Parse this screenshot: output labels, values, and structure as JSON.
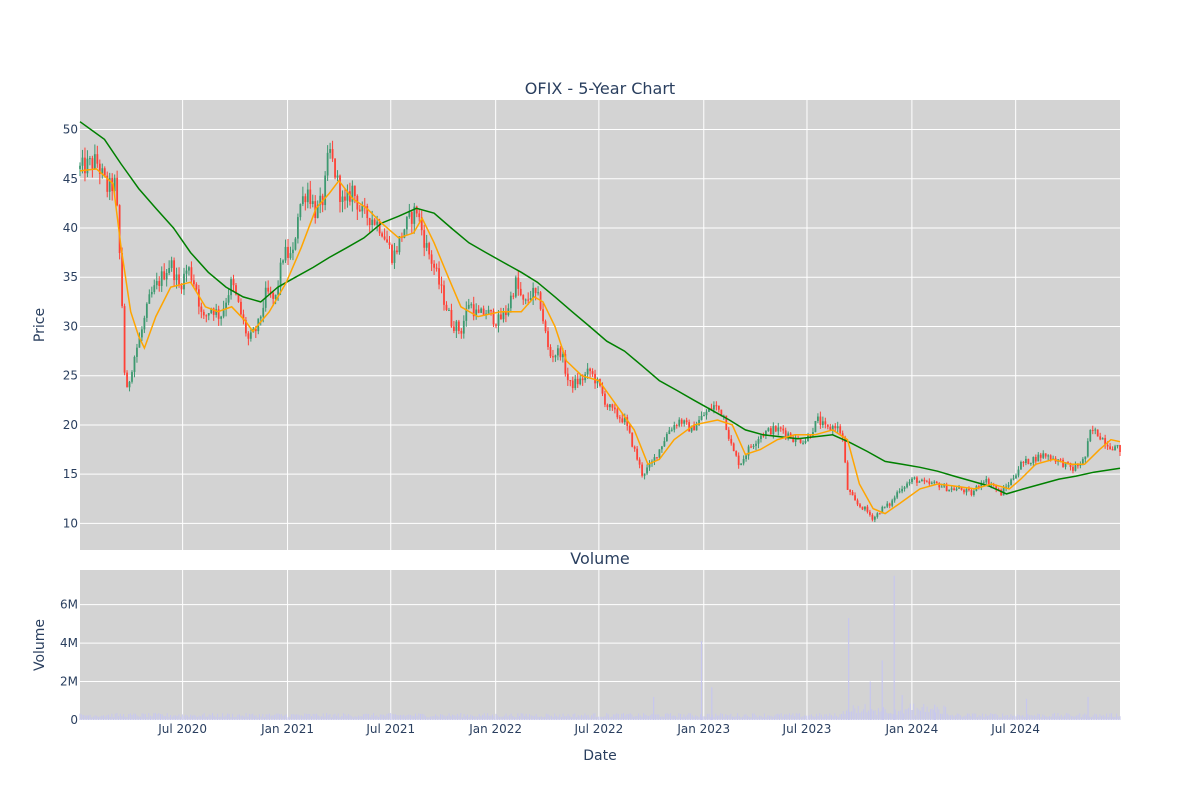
{
  "chart_data": [
    {
      "type": "candlestick",
      "title": "OFIX - 5-Year Chart",
      "ylabel": "Price",
      "ylim": [
        7.3,
        53.0
      ],
      "xlim": [
        "2020-01-03",
        "2024-12-31"
      ],
      "grid": true,
      "y_ticks": [
        "10",
        "15",
        "20",
        "25",
        "30",
        "35",
        "40",
        "45",
        "50"
      ],
      "y_tick_values": [
        10,
        15,
        20,
        25,
        30,
        35,
        40,
        45,
        50
      ],
      "colors": {
        "increasing": "#3d9970",
        "decreasing": "#ff4136",
        "ma_short": "#ffa500",
        "ma_long": "#008000",
        "plot_bg": "#d3d3d3"
      },
      "price_path": [
        [
          "2020-01-03",
          46.0
        ],
        [
          "2020-02-01",
          46.8
        ],
        [
          "2020-02-20",
          44.0
        ],
        [
          "2020-03-05",
          44.5
        ],
        [
          "2020-03-10",
          40.0
        ],
        [
          "2020-03-16",
          33.5
        ],
        [
          "2020-03-23",
          22.6
        ],
        [
          "2020-04-05",
          26.5
        ],
        [
          "2020-04-20",
          29.5
        ],
        [
          "2020-05-05",
          33.0
        ],
        [
          "2020-05-25",
          35.0
        ],
        [
          "2020-06-10",
          36.5
        ],
        [
          "2020-06-25",
          34.0
        ],
        [
          "2020-07-10",
          36.0
        ],
        [
          "2020-07-25",
          34.0
        ],
        [
          "2020-08-05",
          30.5
        ],
        [
          "2020-08-20",
          32.0
        ],
        [
          "2020-09-05",
          31.0
        ],
        [
          "2020-09-25",
          34.5
        ],
        [
          "2020-10-10",
          31.5
        ],
        [
          "2020-10-25",
          28.5
        ],
        [
          "2020-11-10",
          30.0
        ],
        [
          "2020-11-25",
          33.5
        ],
        [
          "2020-12-10",
          32.5
        ],
        [
          "2020-12-25",
          37.5
        ],
        [
          "2021-01-10",
          37.0
        ],
        [
          "2021-01-20",
          42.0
        ],
        [
          "2021-02-05",
          44.0
        ],
        [
          "2021-02-20",
          41.5
        ],
        [
          "2021-03-05",
          43.0
        ],
        [
          "2021-03-15",
          48.0
        ],
        [
          "2021-03-28",
          45.0
        ],
        [
          "2021-04-10",
          42.0
        ],
        [
          "2021-04-25",
          44.0
        ],
        [
          "2021-05-10",
          41.5
        ],
        [
          "2021-05-30",
          41.0
        ],
        [
          "2021-06-15",
          40.0
        ],
        [
          "2021-07-05",
          37.0
        ],
        [
          "2021-07-25",
          40.0
        ],
        [
          "2021-08-15",
          42.0
        ],
        [
          "2021-08-30",
          38.5
        ],
        [
          "2021-09-15",
          36.0
        ],
        [
          "2021-10-01",
          33.0
        ],
        [
          "2021-10-15",
          30.5
        ],
        [
          "2021-11-01",
          29.5
        ],
        [
          "2021-11-15",
          32.5
        ],
        [
          "2021-12-01",
          31.0
        ],
        [
          "2021-12-15",
          31.5
        ],
        [
          "2022-01-05",
          30.5
        ],
        [
          "2022-01-20",
          31.5
        ],
        [
          "2022-02-05",
          34.5
        ],
        [
          "2022-02-20",
          32.0
        ],
        [
          "2022-03-05",
          33.5
        ],
        [
          "2022-03-20",
          32.5
        ],
        [
          "2022-04-05",
          27.0
        ],
        [
          "2022-04-25",
          27.5
        ],
        [
          "2022-05-10",
          24.0
        ],
        [
          "2022-05-30",
          24.5
        ],
        [
          "2022-06-15",
          25.5
        ],
        [
          "2022-07-01",
          24.0
        ],
        [
          "2022-07-15",
          22.0
        ],
        [
          "2022-08-01",
          21.0
        ],
        [
          "2022-08-15",
          20.5
        ],
        [
          "2022-09-01",
          17.5
        ],
        [
          "2022-09-15",
          15.0
        ],
        [
          "2022-10-01",
          16.0
        ],
        [
          "2022-10-15",
          17.5
        ],
        [
          "2022-11-01",
          19.5
        ],
        [
          "2022-11-20",
          20.5
        ],
        [
          "2022-12-10",
          19.5
        ],
        [
          "2023-01-01",
          21.0
        ],
        [
          "2023-01-20",
          22.0
        ],
        [
          "2023-02-05",
          21.0
        ],
        [
          "2023-02-20",
          17.5
        ],
        [
          "2023-03-05",
          16.0
        ],
        [
          "2023-03-20",
          17.5
        ],
        [
          "2023-04-10",
          19.0
        ],
        [
          "2023-04-30",
          19.5
        ],
        [
          "2023-05-20",
          19.5
        ],
        [
          "2023-06-10",
          18.5
        ],
        [
          "2023-06-30",
          18.5
        ],
        [
          "2023-07-20",
          20.5
        ],
        [
          "2023-08-05",
          19.5
        ],
        [
          "2023-08-20",
          20.0
        ],
        [
          "2023-09-01",
          19.0
        ],
        [
          "2023-09-10",
          13.5
        ],
        [
          "2023-09-25",
          12.0
        ],
        [
          "2023-10-10",
          11.5
        ],
        [
          "2023-10-25",
          10.5
        ],
        [
          "2023-11-10",
          11.5
        ],
        [
          "2023-11-25",
          12.0
        ],
        [
          "2023-12-10",
          13.5
        ],
        [
          "2024-01-05",
          14.5
        ],
        [
          "2024-01-25",
          14.0
        ],
        [
          "2024-02-15",
          14.0
        ],
        [
          "2024-03-05",
          13.5
        ],
        [
          "2024-03-25",
          13.5
        ],
        [
          "2024-04-15",
          13.0
        ],
        [
          "2024-05-05",
          14.5
        ],
        [
          "2024-05-20",
          14.0
        ],
        [
          "2024-06-05",
          13.0
        ],
        [
          "2024-06-25",
          14.5
        ],
        [
          "2024-07-10",
          16.0
        ],
        [
          "2024-07-30",
          16.5
        ],
        [
          "2024-08-20",
          17.0
        ],
        [
          "2024-09-10",
          16.5
        ],
        [
          "2024-09-25",
          16.0
        ],
        [
          "2024-10-10",
          15.5
        ],
        [
          "2024-10-30",
          16.5
        ],
        [
          "2024-11-10",
          19.5
        ],
        [
          "2024-11-25",
          19.0
        ],
        [
          "2024-12-10",
          18.0
        ],
        [
          "2024-12-31",
          17.5
        ]
      ],
      "ma_short_path": [
        [
          "2020-01-03",
          45.8
        ],
        [
          "2020-02-01",
          46.0
        ],
        [
          "2020-03-01",
          44.5
        ],
        [
          "2020-03-15",
          38.0
        ],
        [
          "2020-04-01",
          31.5
        ],
        [
          "2020-04-15",
          29.0
        ],
        [
          "2020-04-25",
          27.8
        ],
        [
          "2020-05-15",
          31.0
        ],
        [
          "2020-06-10",
          34.0
        ],
        [
          "2020-07-15",
          34.5
        ],
        [
          "2020-08-10",
          32.0
        ],
        [
          "2020-09-01",
          31.5
        ],
        [
          "2020-09-25",
          32.0
        ],
        [
          "2020-10-20",
          30.5
        ],
        [
          "2020-11-01",
          29.5
        ],
        [
          "2020-11-30",
          31.5
        ],
        [
          "2020-12-30",
          34.5
        ],
        [
          "2021-01-25",
          38.0
        ],
        [
          "2021-02-20",
          42.0
        ],
        [
          "2021-03-15",
          43.5
        ],
        [
          "2021-04-01",
          44.8
        ],
        [
          "2021-04-25",
          43.0
        ],
        [
          "2021-05-20",
          42.0
        ],
        [
          "2021-06-15",
          40.5
        ],
        [
          "2021-07-15",
          39.0
        ],
        [
          "2021-08-10",
          39.5
        ],
        [
          "2021-08-25",
          41.0
        ],
        [
          "2021-09-15",
          38.5
        ],
        [
          "2021-10-10",
          35.0
        ],
        [
          "2021-11-01",
          32.0
        ],
        [
          "2021-12-01",
          31.0
        ],
        [
          "2022-01-10",
          31.5
        ],
        [
          "2022-02-15",
          31.5
        ],
        [
          "2022-03-10",
          33.0
        ],
        [
          "2022-03-25",
          32.5
        ],
        [
          "2022-04-15",
          30.0
        ],
        [
          "2022-05-05",
          26.5
        ],
        [
          "2022-06-01",
          25.0
        ],
        [
          "2022-07-01",
          24.5
        ],
        [
          "2022-08-01",
          22.0
        ],
        [
          "2022-09-01",
          19.5
        ],
        [
          "2022-09-25",
          16.0
        ],
        [
          "2022-10-15",
          16.5
        ],
        [
          "2022-11-10",
          18.5
        ],
        [
          "2022-12-15",
          20.0
        ],
        [
          "2023-01-25",
          20.5
        ],
        [
          "2023-02-20",
          20.0
        ],
        [
          "2023-03-15",
          17.0
        ],
        [
          "2023-04-10",
          17.5
        ],
        [
          "2023-05-10",
          18.5
        ],
        [
          "2023-06-10",
          19.0
        ],
        [
          "2023-07-15",
          19.0
        ],
        [
          "2023-08-15",
          19.5
        ],
        [
          "2023-09-10",
          18.5
        ],
        [
          "2023-10-01",
          14.0
        ],
        [
          "2023-10-25",
          11.5
        ],
        [
          "2023-11-15",
          11.0
        ],
        [
          "2023-12-10",
          12.0
        ],
        [
          "2024-01-15",
          13.5
        ],
        [
          "2024-02-15",
          14.0
        ],
        [
          "2024-03-15",
          13.8
        ],
        [
          "2024-04-20",
          13.5
        ],
        [
          "2024-05-20",
          14.0
        ],
        [
          "2024-06-20",
          13.5
        ],
        [
          "2024-07-10",
          14.5
        ],
        [
          "2024-08-05",
          16.0
        ],
        [
          "2024-09-05",
          16.5
        ],
        [
          "2024-10-05",
          16.0
        ],
        [
          "2024-10-30",
          16.0
        ],
        [
          "2024-11-25",
          17.5
        ],
        [
          "2024-12-15",
          18.5
        ],
        [
          "2024-12-31",
          18.3
        ]
      ],
      "ma_long_path": [
        [
          "2020-01-03",
          50.8
        ],
        [
          "2020-02-15",
          49.0
        ],
        [
          "2020-03-15",
          46.5
        ],
        [
          "2020-04-15",
          44.0
        ],
        [
          "2020-05-15",
          42.0
        ],
        [
          "2020-06-15",
          40.0
        ],
        [
          "2020-07-15",
          37.5
        ],
        [
          "2020-08-15",
          35.5
        ],
        [
          "2020-09-15",
          34.0
        ],
        [
          "2020-10-15",
          33.0
        ],
        [
          "2020-11-15",
          32.5
        ],
        [
          "2020-12-15",
          34.0
        ],
        [
          "2021-01-15",
          35.0
        ],
        [
          "2021-02-15",
          36.0
        ],
        [
          "2021-03-15",
          37.0
        ],
        [
          "2021-04-15",
          38.0
        ],
        [
          "2021-05-15",
          39.0
        ],
        [
          "2021-06-15",
          40.5
        ],
        [
          "2021-07-15",
          41.2
        ],
        [
          "2021-08-15",
          42.0
        ],
        [
          "2021-09-15",
          41.5
        ],
        [
          "2021-10-15",
          40.0
        ],
        [
          "2021-11-15",
          38.5
        ],
        [
          "2021-12-15",
          37.5
        ],
        [
          "2022-01-15",
          36.5
        ],
        [
          "2022-02-15",
          35.5
        ],
        [
          "2022-03-15",
          34.5
        ],
        [
          "2022-04-15",
          33.0
        ],
        [
          "2022-05-15",
          31.5
        ],
        [
          "2022-06-15",
          30.0
        ],
        [
          "2022-07-15",
          28.5
        ],
        [
          "2022-08-15",
          27.5
        ],
        [
          "2022-09-15",
          26.0
        ],
        [
          "2022-10-15",
          24.5
        ],
        [
          "2022-11-15",
          23.5
        ],
        [
          "2022-12-15",
          22.5
        ],
        [
          "2023-01-15",
          21.5
        ],
        [
          "2023-02-15",
          20.5
        ],
        [
          "2023-03-15",
          19.5
        ],
        [
          "2023-04-15",
          19.0
        ],
        [
          "2023-05-15",
          18.8
        ],
        [
          "2023-06-15",
          18.6
        ],
        [
          "2023-07-15",
          18.8
        ],
        [
          "2023-08-15",
          19.0
        ],
        [
          "2023-09-15",
          18.2
        ],
        [
          "2023-10-15",
          17.3
        ],
        [
          "2023-11-15",
          16.3
        ],
        [
          "2023-12-15",
          16.0
        ],
        [
          "2024-01-15",
          15.7
        ],
        [
          "2024-02-15",
          15.3
        ],
        [
          "2024-03-15",
          14.8
        ],
        [
          "2024-04-15",
          14.3
        ],
        [
          "2024-05-15",
          13.8
        ],
        [
          "2024-06-15",
          13.0
        ],
        [
          "2024-07-15",
          13.5
        ],
        [
          "2024-08-15",
          14.0
        ],
        [
          "2024-09-15",
          14.5
        ],
        [
          "2024-10-15",
          14.8
        ],
        [
          "2024-11-15",
          15.2
        ],
        [
          "2024-12-31",
          15.6
        ]
      ]
    },
    {
      "type": "bar",
      "title": "Volume",
      "xlabel": "Date",
      "ylabel": "Volume",
      "ylim": [
        0,
        7800000
      ],
      "grid": true,
      "y_ticks": [
        "0",
        "2M",
        "4M",
        "6M"
      ],
      "y_tick_values": [
        0,
        2000000,
        4000000,
        6000000
      ],
      "x_ticks": [
        "Jul 2020",
        "Jan 2021",
        "Jul 2021",
        "Jan 2022",
        "Jul 2022",
        "Jan 2023",
        "Jul 2023",
        "Jan 2024",
        "Jul 2024"
      ],
      "x_tick_dates": [
        "2020-07-01",
        "2021-01-01",
        "2021-07-01",
        "2022-01-01",
        "2022-07-01",
        "2023-01-01",
        "2023-07-01",
        "2024-01-01",
        "2024-07-01"
      ],
      "colors": {
        "bar": "#c7c7ee",
        "plot_bg": "#d3d3d3"
      },
      "baseline_volume": 250000,
      "volume_spikes": [
        [
          "2022-10-05",
          1200000
        ],
        [
          "2022-12-28",
          4100000
        ],
        [
          "2023-01-15",
          1700000
        ],
        [
          "2023-09-12",
          5300000
        ],
        [
          "2023-10-20",
          2000000
        ],
        [
          "2023-11-10",
          3100000
        ],
        [
          "2023-12-01",
          7500000
        ],
        [
          "2023-12-15",
          1300000
        ],
        [
          "2024-02-10",
          800000
        ],
        [
          "2024-07-20",
          1100000
        ],
        [
          "2024-11-05",
          1200000
        ]
      ]
    }
  ]
}
